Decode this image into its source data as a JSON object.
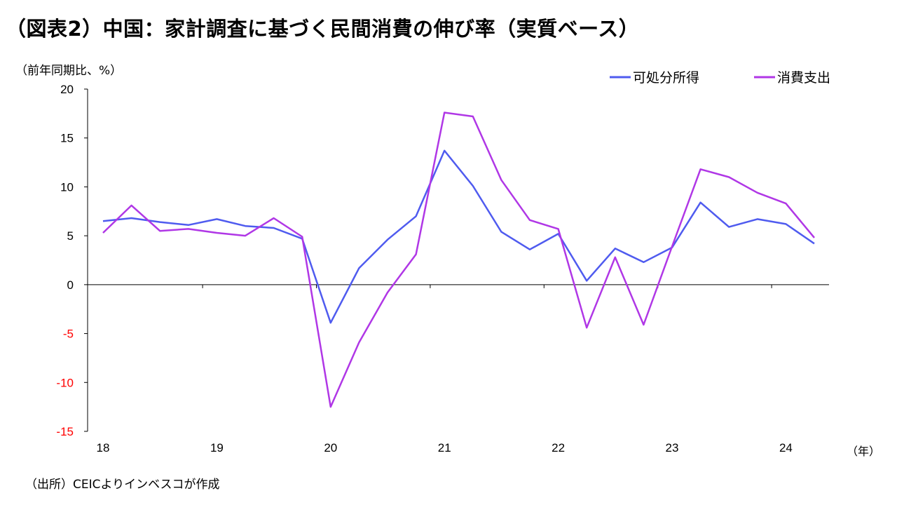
{
  "header": {
    "title": "（図表2）中国：家計調査に基づく民間消費の伸び率（実質ベース）"
  },
  "footer": {
    "source": "（出所）CEICよりインベスコが作成"
  },
  "chart_data": {
    "type": "line",
    "title": "（図表2）中国：家計調査に基づく民間消費の伸び率（実質ベース）",
    "ylabel": "（前年同期比、%）",
    "xlabel": "（年）",
    "ylim": [
      -15,
      20
    ],
    "yticks": [
      "20",
      "15",
      "10",
      "5",
      "0",
      "-5",
      "-10",
      "-15"
    ],
    "negative_tick_color": "#ff0000",
    "x_tick_labels": [
      "18",
      "19",
      "20",
      "21",
      "22",
      "23",
      "24"
    ],
    "x": [
      "18Q1",
      "18Q2",
      "18Q3",
      "18Q4",
      "19Q1",
      "19Q2",
      "19Q3",
      "19Q4",
      "20Q1",
      "20Q2",
      "20Q3",
      "20Q4",
      "21Q1",
      "21Q2",
      "21Q3",
      "21Q4",
      "22Q1",
      "22Q2",
      "22Q3",
      "22Q4",
      "23Q1",
      "23Q2",
      "23Q3",
      "23Q4",
      "24Q1",
      "24Q2"
    ],
    "legend_position": "top-right",
    "grid": false,
    "series": [
      {
        "name": "可処分所得",
        "color": "#4f5bef",
        "values": [
          6.5,
          6.8,
          6.4,
          6.1,
          6.7,
          6.0,
          5.8,
          4.7,
          -3.9,
          1.7,
          4.6,
          7.0,
          13.7,
          10.1,
          5.4,
          3.6,
          5.2,
          0.4,
          3.7,
          2.3,
          3.8,
          8.4,
          5.9,
          6.7,
          6.2,
          4.2
        ]
      },
      {
        "name": "消費支出",
        "color": "#b037e6",
        "values": [
          5.3,
          8.1,
          5.5,
          5.7,
          5.3,
          5.0,
          6.8,
          4.9,
          -12.5,
          -5.9,
          -0.8,
          3.1,
          17.6,
          17.2,
          10.7,
          6.6,
          5.7,
          -4.4,
          2.8,
          -4.1,
          3.9,
          11.8,
          11.0,
          9.4,
          8.3,
          4.8
        ]
      }
    ]
  }
}
